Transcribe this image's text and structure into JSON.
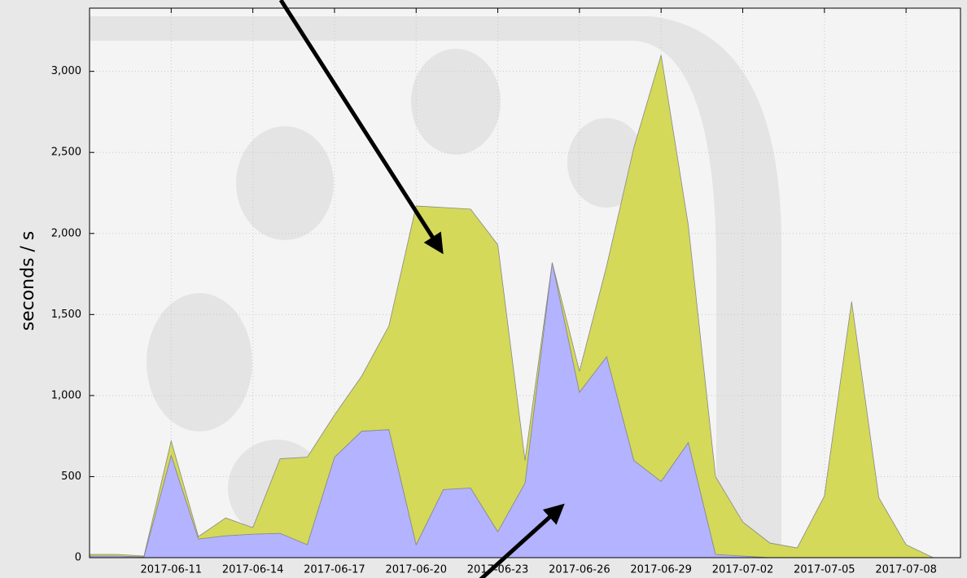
{
  "chart_data": {
    "type": "stacked-area",
    "y_label": "seconds / s",
    "x": [
      "2017-06-08",
      "2017-06-09",
      "2017-06-10",
      "2017-06-11",
      "2017-06-12",
      "2017-06-13",
      "2017-06-14",
      "2017-06-15",
      "2017-06-16",
      "2017-06-17",
      "2017-06-18",
      "2017-06-19",
      "2017-06-20",
      "2017-06-21",
      "2017-06-22",
      "2017-06-23",
      "2017-06-24",
      "2017-06-25",
      "2017-06-26",
      "2017-06-27",
      "2017-06-28",
      "2017-06-29",
      "2017-06-30",
      "2017-07-01",
      "2017-07-02",
      "2017-07-03",
      "2017-07-04",
      "2017-07-05",
      "2017-07-06",
      "2017-07-07",
      "2017-07-08",
      "2017-07-09"
    ],
    "series": [
      {
        "color": "#b3b3ff",
        "values": [
          10,
          10,
          5,
          630,
          115,
          135,
          145,
          150,
          80,
          620,
          780,
          790,
          80,
          420,
          430,
          160,
          460,
          1820,
          1020,
          1240,
          600,
          470,
          710,
          20,
          10,
          0,
          0,
          0,
          0,
          0,
          0,
          0
        ]
      },
      {
        "color": "#d4d95a",
        "values": [
          10,
          10,
          5,
          90,
          15,
          110,
          40,
          460,
          540,
          260,
          340,
          640,
          2090,
          1740,
          1720,
          1770,
          140,
          0,
          130,
          560,
          1930,
          2630,
          1340,
          480,
          210,
          90,
          60,
          380,
          1580,
          370,
          80,
          0
        ]
      }
    ],
    "xlim": [
      "2017-06-08",
      "2017-07-10"
    ],
    "xticks": [
      "2017-06-11",
      "2017-06-14",
      "2017-06-17",
      "2017-06-20",
      "2017-06-23",
      "2017-06-26",
      "2017-06-29",
      "2017-07-02",
      "2017-07-05",
      "2017-07-08"
    ],
    "ylim": [
      0,
      3390
    ],
    "yticks": [
      0,
      500,
      {
        "value": 1000,
        "label": "1,000"
      },
      {
        "value": 1500,
        "label": "1,500"
      },
      {
        "value": 2000,
        "label": "2,000"
      },
      {
        "value": 2500,
        "label": "2,500"
      },
      {
        "value": 3000,
        "label": "3,000"
      }
    ],
    "grid": true
  }
}
